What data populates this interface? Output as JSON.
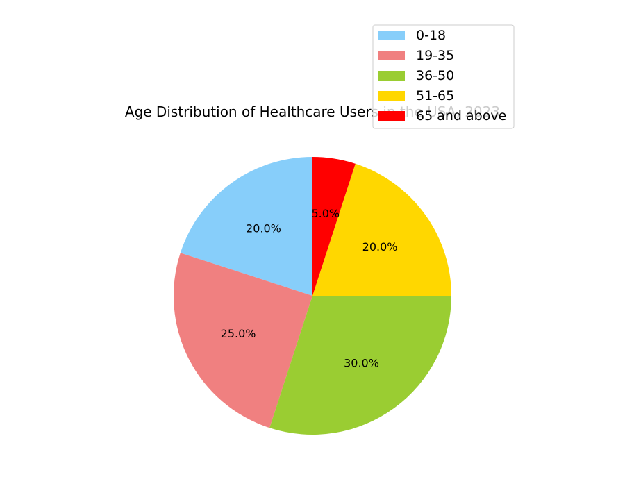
{
  "chart_data": {
    "type": "pie",
    "title": "Age Distribution of Healthcare Users in the USA, 2023",
    "categories": [
      "0-18",
      "19-35",
      "36-50",
      "51-65",
      "65 and above"
    ],
    "values": [
      20.0,
      25.0,
      30.0,
      20.0,
      5.0
    ],
    "value_labels": [
      "20.0%",
      "25.0%",
      "30.0%",
      "20.0%",
      "5.0%"
    ],
    "colors": [
      "#87cefa",
      "#f08080",
      "#9acd32",
      "#ffd700",
      "#ff0000"
    ],
    "start_angle_deg": 90,
    "direction": "counterclockwise",
    "legend_placement": "upper-right"
  }
}
